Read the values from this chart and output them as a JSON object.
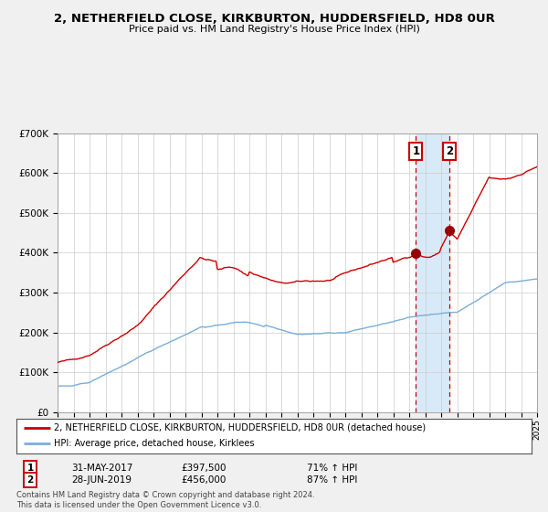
{
  "title": "2, NETHERFIELD CLOSE, KIRKBURTON, HUDDERSFIELD, HD8 0UR",
  "subtitle": "Price paid vs. HM Land Registry's House Price Index (HPI)",
  "legend_line1": "2, NETHERFIELD CLOSE, KIRKBURTON, HUDDERSFIELD, HD8 0UR (detached house)",
  "legend_line2": "HPI: Average price, detached house, Kirklees",
  "transaction1_date": "31-MAY-2017",
  "transaction1_price": "£397,500",
  "transaction1_hpi": "71% ↑ HPI",
  "transaction2_date": "28-JUN-2019",
  "transaction2_price": "£456,000",
  "transaction2_hpi": "87% ↑ HPI",
  "footer1": "Contains HM Land Registry data © Crown copyright and database right 2024.",
  "footer2": "This data is licensed under the Open Government Licence v3.0.",
  "red_color": "#cc0000",
  "blue_color": "#7aadda",
  "marker_color": "#990000",
  "background_color": "#f0f0f0",
  "plot_bg_color": "#ffffff",
  "grid_color": "#cccccc",
  "highlight_color": "#d8eaf8",
  "ylim": [
    0,
    700000
  ],
  "yticks": [
    0,
    100000,
    200000,
    300000,
    400000,
    500000,
    600000,
    700000
  ],
  "ytick_labels": [
    "£0",
    "£100K",
    "£200K",
    "£300K",
    "£400K",
    "£500K",
    "£600K",
    "£700K"
  ],
  "year_start": 1995,
  "year_end": 2025,
  "transaction1_year": 2017.42,
  "transaction2_year": 2019.5,
  "transaction1_value": 397500,
  "transaction2_value": 456000
}
